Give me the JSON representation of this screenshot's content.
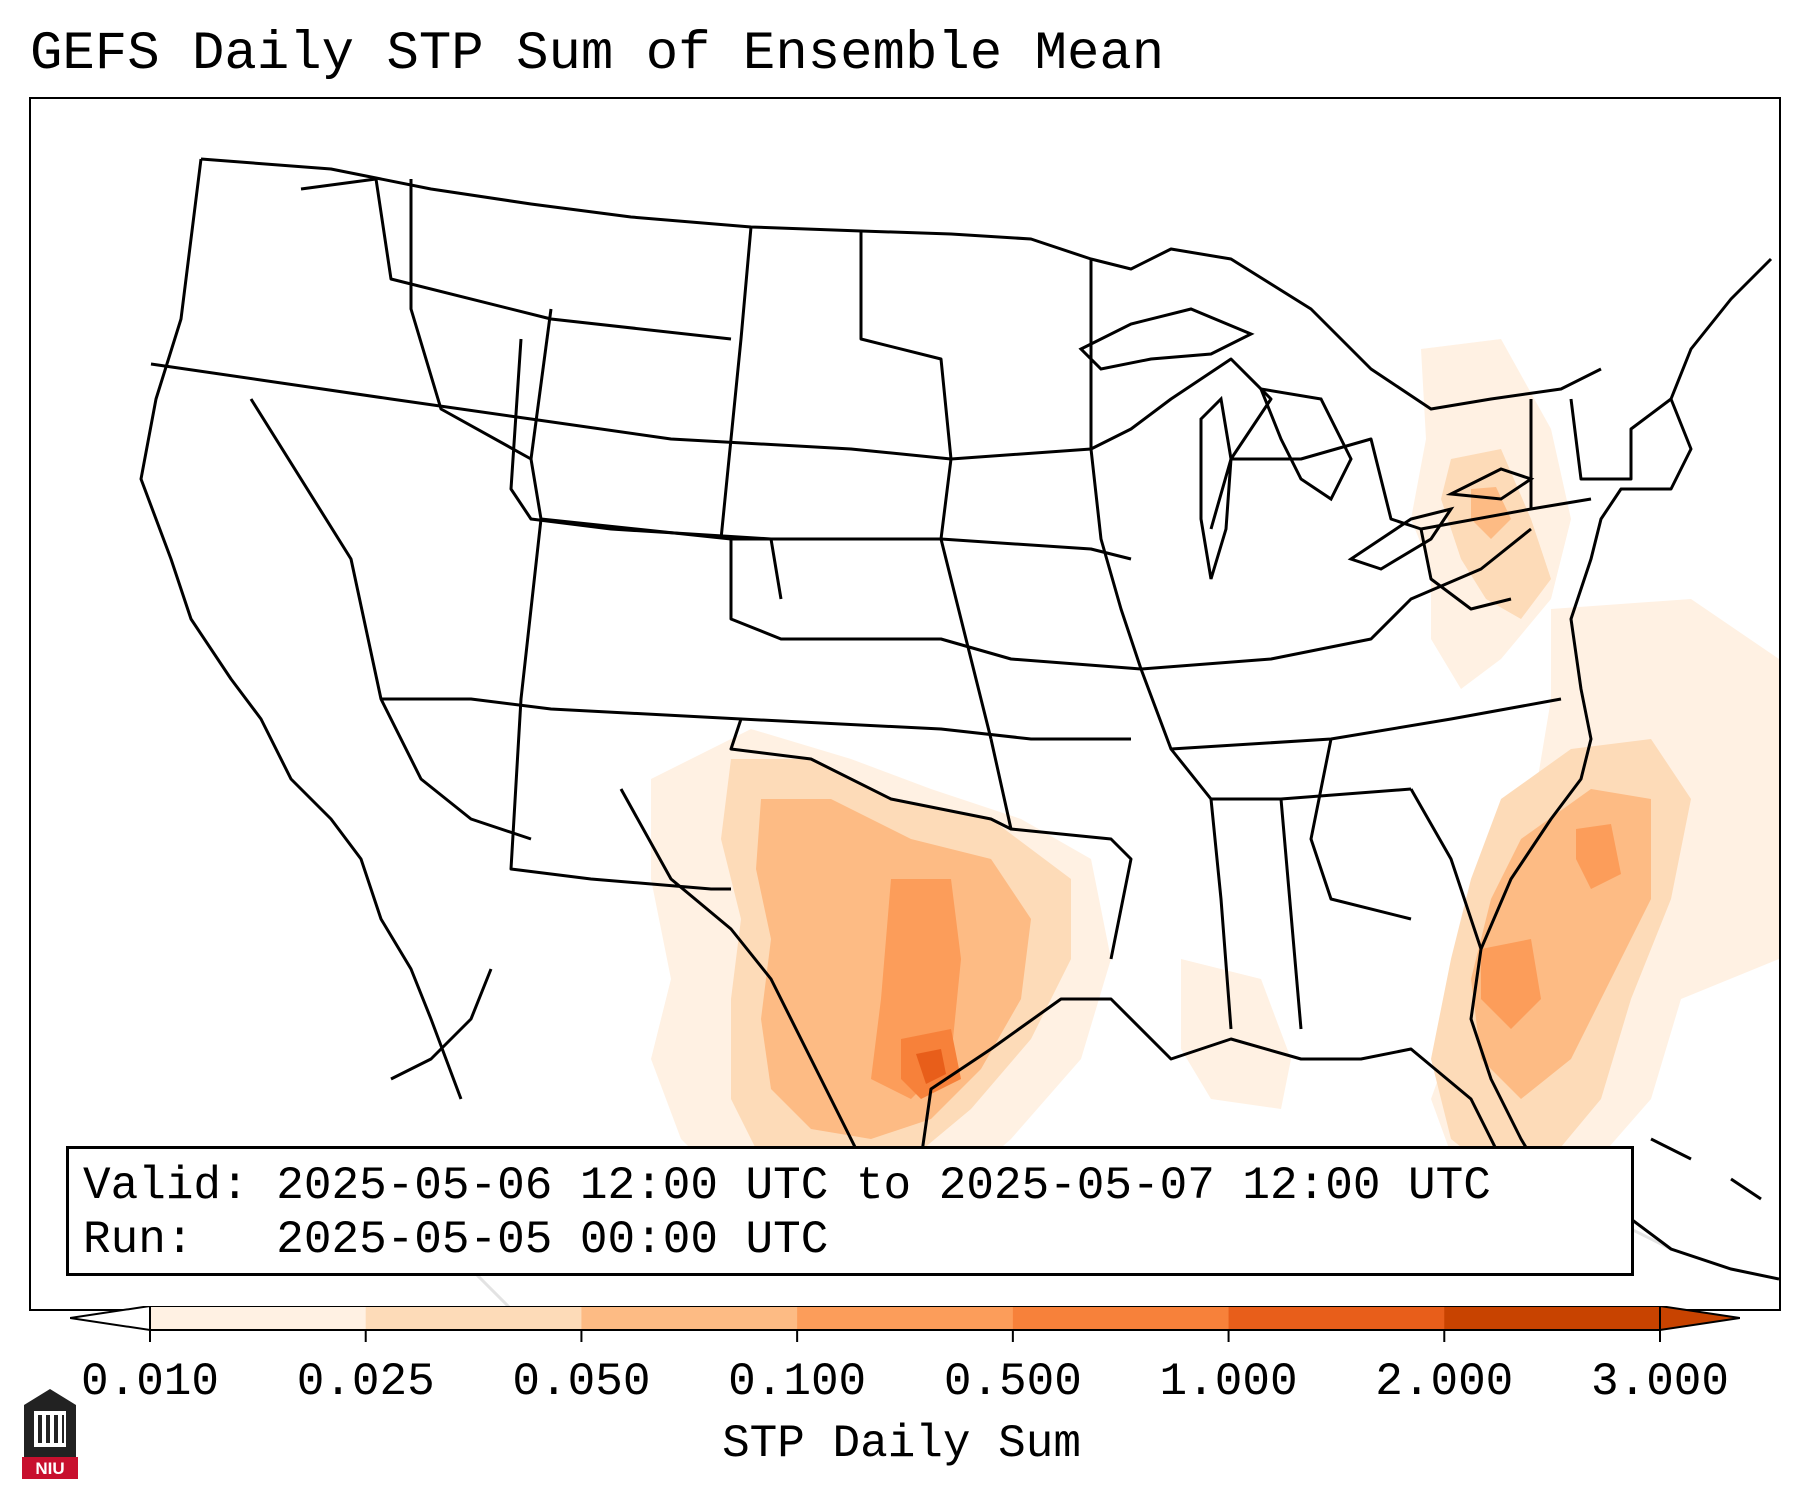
{
  "title": "GEFS Daily STP Sum of Ensemble Mean",
  "info": {
    "valid_label": "Valid:",
    "valid_value": "2025-05-06 12:00 UTC to 2025-05-07 12:00 UTC",
    "run_label": "Run:",
    "run_value": "2025-05-05 00:00 UTC"
  },
  "colorbar": {
    "label": "STP Daily Sum",
    "ticks": [
      "0.010",
      "0.025",
      "0.050",
      "0.100",
      "0.500",
      "1.000",
      "2.000",
      "3.000"
    ],
    "colors": [
      "#fff1e3",
      "#fddbb8",
      "#fdbb84",
      "#fc9d5a",
      "#f7813a",
      "#e85e1a",
      "#c84300"
    ],
    "extend": "both"
  },
  "map": {
    "projection": "Lambert Conformal, CONUS",
    "colormap": "Oranges"
  },
  "logo": {
    "text": "NIU",
    "icon": "university-building-icon"
  }
}
